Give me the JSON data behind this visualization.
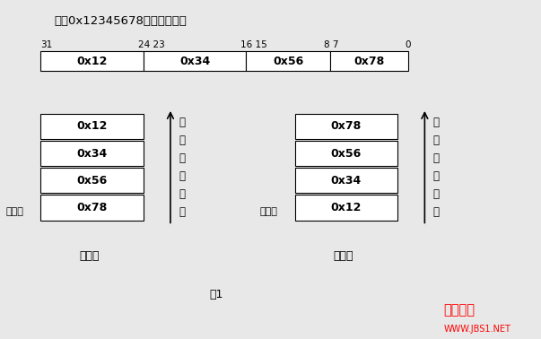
{
  "title": "整形0x12345678的位表示方法",
  "bg_color": "#e8e8e8",
  "box_facecolor": "white",
  "box_edgecolor": "black",
  "watermark_text": "脚本之家",
  "watermark_sub": "WWW.JBS1.NET",
  "addr_text_chars": [
    "地",
    "址",
    "增",
    "大",
    "方",
    "向"
  ],
  "low_addr_text": "低地址",
  "little_endian_label": "小端法",
  "big_endian_label": "大端法",
  "fig_label": "图1"
}
